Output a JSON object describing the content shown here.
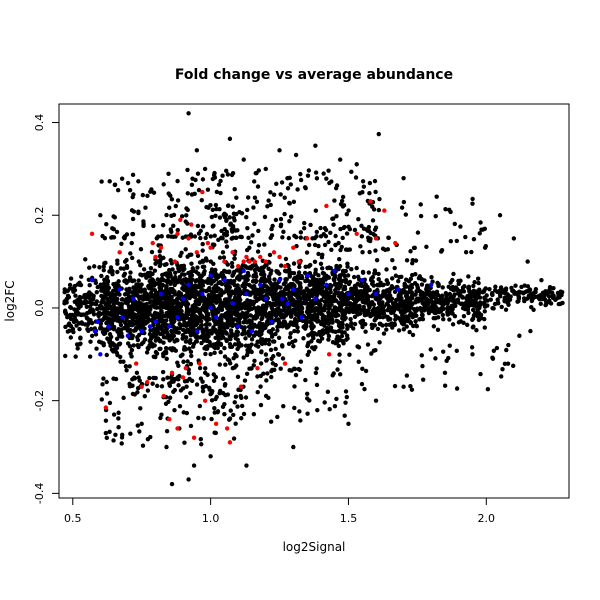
{
  "chart_data": {
    "type": "scatter",
    "title": "Fold change vs average abundance",
    "xlabel": "log2Signal",
    "ylabel": "log2FC",
    "xlim": [
      0.45,
      2.3
    ],
    "ylim": [
      -0.41,
      0.44
    ],
    "x_ticks": [
      0.5,
      1.0,
      1.5,
      2.0
    ],
    "x_tick_labels": [
      "0.5",
      "1.0",
      "1.5",
      "2.0"
    ],
    "y_ticks": [
      -0.4,
      -0.2,
      0.0,
      0.2,
      0.4
    ],
    "y_tick_labels": [
      "-0.4",
      "-0.2",
      "0.0",
      "0.2",
      "0.4"
    ],
    "grid": false,
    "legend": "none",
    "point_colors": {
      "all": "#000000",
      "up_down": "#ff0000",
      "control": "#0000ff"
    },
    "series": [
      {
        "color": "#000000",
        "points": [
          [
            0.92,
            0.42
          ],
          [
            1.61,
            0.375
          ],
          [
            1.07,
            0.365
          ],
          [
            0.95,
            0.34
          ],
          [
            1.25,
            0.34
          ],
          [
            1.38,
            0.35
          ],
          [
            1.12,
            0.32
          ],
          [
            1.31,
            0.33
          ],
          [
            1.47,
            0.32
          ],
          [
            0.98,
            0.3
          ],
          [
            1.2,
            0.3
          ],
          [
            1.53,
            0.31
          ],
          [
            1.41,
            0.29
          ],
          [
            1.7,
            0.28
          ],
          [
            0.72,
            0.245
          ],
          [
            1.82,
            0.24
          ],
          [
            1.95,
            0.225
          ],
          [
            2.05,
            0.2
          ],
          [
            0.6,
            0.2
          ],
          [
            2.1,
            0.15
          ],
          [
            2.15,
            0.1
          ],
          [
            2.2,
            0.06
          ],
          [
            2.27,
            0.035
          ],
          [
            2.23,
            0.04
          ],
          [
            0.65,
            -0.23
          ],
          [
            0.62,
            -0.27
          ],
          [
            0.75,
            -0.25
          ],
          [
            0.86,
            -0.38
          ],
          [
            0.92,
            -0.37
          ],
          [
            0.84,
            -0.3
          ],
          [
            0.94,
            -0.34
          ],
          [
            1.0,
            -0.32
          ],
          [
            1.13,
            -0.34
          ],
          [
            1.3,
            -0.3
          ],
          [
            1.5,
            -0.25
          ],
          [
            1.6,
            -0.2
          ],
          [
            1.7,
            -0.17
          ],
          [
            1.85,
            -0.14
          ],
          [
            1.95,
            -0.1
          ],
          [
            2.08,
            -0.08
          ],
          [
            2.16,
            -0.05
          ],
          [
            2.12,
            -0.06
          ],
          [
            0.48,
            -0.02
          ],
          [
            0.47,
            0.01
          ]
        ],
        "bands": [
          {
            "x": [
              0.47,
              0.6
            ],
            "center": 0.0,
            "spread": 0.075,
            "n": 160
          },
          {
            "x": [
              0.6,
              0.8
            ],
            "center": 0.0,
            "spread": 0.1,
            "n": 550
          },
          {
            "x": [
              0.8,
              1.0
            ],
            "center": 0.0,
            "spread": 0.11,
            "n": 650
          },
          {
            "x": [
              1.0,
              1.25
            ],
            "center": 0.005,
            "spread": 0.11,
            "n": 750
          },
          {
            "x": [
              1.25,
              1.5
            ],
            "center": 0.01,
            "spread": 0.09,
            "n": 650
          },
          {
            "x": [
              1.5,
              1.75
            ],
            "center": 0.012,
            "spread": 0.065,
            "n": 450
          },
          {
            "x": [
              1.75,
              2.0
            ],
            "center": 0.015,
            "spread": 0.045,
            "n": 300
          },
          {
            "x": [
              2.0,
              2.28
            ],
            "center": 0.025,
            "spread": 0.025,
            "n": 130
          }
        ],
        "outliers": [
          {
            "x": [
              0.6,
              1.1
            ],
            "y": [
              0.15,
              0.3
            ],
            "n": 120
          },
          {
            "x": [
              1.0,
              1.6
            ],
            "y": [
              0.15,
              0.3
            ],
            "n": 160
          },
          {
            "x": [
              1.4,
              2.0
            ],
            "y": [
              0.12,
              0.25
            ],
            "n": 70
          },
          {
            "x": [
              0.6,
              1.1
            ],
            "y": [
              -0.3,
              -0.15
            ],
            "n": 120
          },
          {
            "x": [
              1.0,
              1.5
            ],
            "y": [
              -0.25,
              -0.13
            ],
            "n": 80
          },
          {
            "x": [
              1.5,
              2.1
            ],
            "y": [
              -0.18,
              -0.08
            ],
            "n": 40
          }
        ]
      },
      {
        "color": "#ff0000",
        "points": [
          [
            0.57,
            0.16
          ],
          [
            0.62,
            -0.215
          ],
          [
            0.67,
            0.12
          ],
          [
            0.73,
            -0.12
          ],
          [
            0.75,
            -0.17
          ],
          [
            0.77,
            -0.16
          ],
          [
            0.8,
            0.11
          ],
          [
            0.82,
            0.13
          ],
          [
            0.83,
            -0.19
          ],
          [
            0.85,
            -0.24
          ],
          [
            0.86,
            -0.14
          ],
          [
            0.87,
            0.1
          ],
          [
            0.88,
            0.16
          ],
          [
            0.89,
            0.19
          ],
          [
            0.9,
            -0.15
          ],
          [
            0.91,
            -0.13
          ],
          [
            0.92,
            0.15
          ],
          [
            0.93,
            0.18
          ],
          [
            0.94,
            -0.28
          ],
          [
            0.95,
            0.12
          ],
          [
            0.96,
            -0.12
          ],
          [
            0.97,
            0.25
          ],
          [
            0.98,
            -0.2
          ],
          [
            0.99,
            0.14
          ],
          [
            1.0,
            0.13
          ],
          [
            1.02,
            -0.25
          ],
          [
            1.05,
            0.1
          ],
          [
            1.06,
            -0.26
          ],
          [
            1.07,
            -0.29
          ],
          [
            1.08,
            0.12
          ],
          [
            1.1,
            0.09
          ],
          [
            1.12,
            0.1
          ],
          [
            1.13,
            0.11
          ],
          [
            1.14,
            0.1
          ],
          [
            1.16,
            0.1
          ],
          [
            1.17,
            -0.13
          ],
          [
            1.18,
            0.11
          ],
          [
            1.2,
            0.1
          ],
          [
            1.23,
            0.12
          ],
          [
            1.25,
            0.11
          ],
          [
            1.27,
            0.09
          ],
          [
            1.3,
            0.13
          ],
          [
            1.32,
            0.1
          ],
          [
            1.35,
            0.15
          ],
          [
            1.42,
            0.22
          ],
          [
            1.53,
            0.16
          ],
          [
            1.58,
            0.23
          ],
          [
            1.6,
            0.15
          ],
          [
            1.63,
            0.21
          ],
          [
            1.67,
            0.14
          ],
          [
            1.27,
            -0.12
          ],
          [
            1.43,
            -0.1
          ],
          [
            0.88,
            -0.26
          ],
          [
            1.11,
            -0.17
          ],
          [
            0.79,
            0.14
          ]
        ]
      },
      {
        "color": "#0000ff",
        "points": [
          [
            0.57,
            0.06
          ],
          [
            0.59,
            -0.03
          ],
          [
            0.6,
            -0.1
          ],
          [
            0.63,
            -0.04
          ],
          [
            0.67,
            0.04
          ],
          [
            0.7,
            -0.06
          ],
          [
            0.72,
            0.02
          ],
          [
            0.75,
            -0.05
          ],
          [
            0.78,
            -0.04
          ],
          [
            0.8,
            -0.03
          ],
          [
            0.82,
            0.03
          ],
          [
            0.85,
            -0.04
          ],
          [
            0.88,
            -0.02
          ],
          [
            0.9,
            0.02
          ],
          [
            0.92,
            0.05
          ],
          [
            0.95,
            -0.05
          ],
          [
            0.97,
            0.03
          ],
          [
            1.0,
            0.0
          ],
          [
            1.02,
            -0.02
          ],
          [
            1.05,
            0.06
          ],
          [
            1.08,
            0.01
          ],
          [
            1.1,
            -0.04
          ],
          [
            1.13,
            0.03
          ],
          [
            1.15,
            -0.05
          ],
          [
            1.18,
            0.05
          ],
          [
            1.2,
            0.02
          ],
          [
            1.22,
            -0.03
          ],
          [
            1.25,
            0.06
          ],
          [
            1.28,
            0.01
          ],
          [
            1.3,
            0.04
          ],
          [
            1.33,
            -0.02
          ],
          [
            1.35,
            0.07
          ],
          [
            1.38,
            0.02
          ],
          [
            1.42,
            0.05
          ],
          [
            1.45,
            0.08
          ],
          [
            1.5,
            0.03
          ],
          [
            1.55,
            0.06
          ],
          [
            1.6,
            0.03
          ],
          [
            1.68,
            0.04
          ],
          [
            1.8,
            0.05
          ],
          [
            0.58,
            -0.05
          ],
          [
            1.0,
            0.07
          ],
          [
            1.26,
            0.02
          ],
          [
            0.68,
            -0.02
          ],
          [
            1.12,
            0.08
          ]
        ]
      }
    ]
  }
}
